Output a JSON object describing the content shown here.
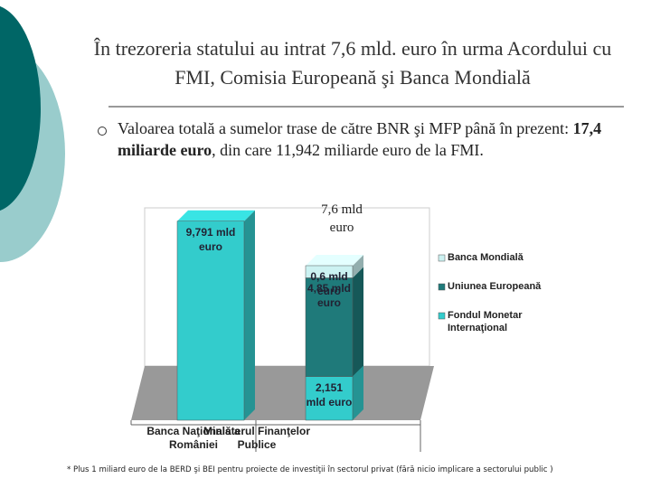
{
  "slide": {
    "title": "În trezoreria statului au intrat 7,6 mld. euro în urma Acordului cu FMI, Comisia Europeană şi Banca Mondială",
    "bullet_parts": [
      "Valoarea totală a sumelor trase de către BNR şi MFP până în prezent: ",
      "17,4 miliarde euro",
      ", din care 11,942 miliarde euro de la FMI."
    ],
    "footnote": "* Plus 1 miliard euro de la BERD şi BEI pentru proiecte de investiţii în sectorul privat (fără nicio implicare a sectorului public )"
  },
  "chart_data": {
    "type": "stacked-bar",
    "categories": [
      "Banca Naţională a României",
      "Ministerul Finanţelor Publice"
    ],
    "annotation": "7,6 mld euro",
    "series": [
      {
        "name": "Banca Mondială",
        "color": "#ccf2f2",
        "values": [
          null,
          0.6
        ],
        "value_labels": [
          null,
          "0,6 mld euro"
        ]
      },
      {
        "name": "Uniunea Europeană",
        "color": "#1f7a7a",
        "values": [
          null,
          4.85
        ],
        "value_labels": [
          null,
          "4,85 mld euro"
        ]
      },
      {
        "name": "Fondul Monetar Internaţional",
        "color": "#33cccc",
        "values": [
          9.791,
          2.151
        ],
        "value_labels": [
          "9,791 mld euro",
          "2,151 mld euro"
        ]
      }
    ],
    "legend": "right"
  }
}
